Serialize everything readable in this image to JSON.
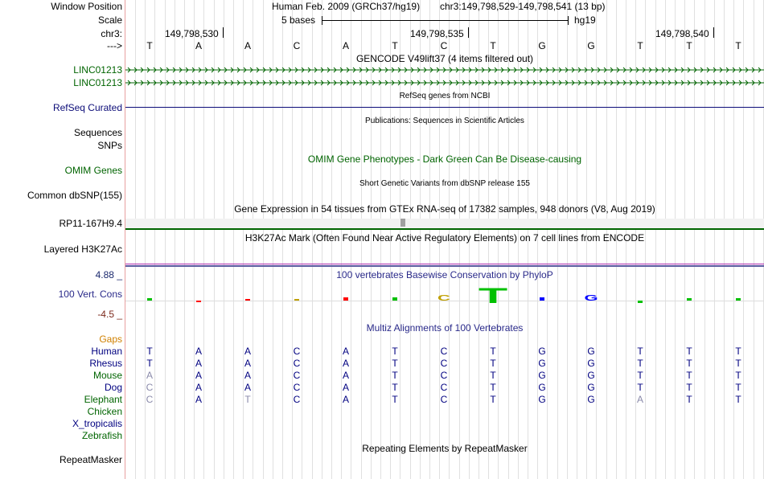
{
  "side_labels": {
    "window_position": "Window Position",
    "scale": "Scale",
    "chr": "chr3:",
    "arrow": "--->",
    "linc1": "LINC01213",
    "linc2": "LINC01213",
    "refseq": "RefSeq Curated",
    "sequences": "Sequences",
    "snps": "SNPs",
    "omim": "OMIM Genes",
    "dbsnp": "Common dbSNP(155)",
    "rp11": "RP11-167H9.4",
    "h3k27ac": "Layered H3K27Ac",
    "cons_max": "4.88 _",
    "vert_cons": "100 Vert. Cons",
    "cons_min": "-4.5 _",
    "gaps": "Gaps",
    "repeatmasker": "RepeatMasker"
  },
  "header": {
    "assembly": "Human Feb. 2009 (GRCh37/hg19)",
    "position": "chr3:149,798,529-149,798,541 (13 bp)",
    "scale_label": "5 bases",
    "db": "hg19",
    "tick1": "149,798,530",
    "tick2": "149,798,535",
    "tick3": "149,798,540"
  },
  "tracks": {
    "gencode": "GENCODE V49lift37 (4 items filtered out)",
    "refseq_title": "RefSeq genes from NCBI",
    "publications": "Publications: Sequences in Scientific Articles",
    "omim_title": "OMIM Gene Phenotypes - Dark Green Can Be Disease-causing",
    "dbsnp_title": "Short Genetic Variants from dbSNP release 155",
    "gtex": "Gene Expression in 54 tissues from GTEx RNA-seq of 17382 samples, 948 donors (V8, Aug 2019)",
    "h3k27ac_title": "H3K27Ac Mark (Often Found Near Active Regulatory Elements) on 7 cell lines from ENCODE",
    "phylop": "100 vertebrates Basewise Conservation by PhyloP",
    "multiz": "Multiz Alignments of 100 Vertebrates",
    "repeat_title": "Repeating Elements by RepeatMasker"
  },
  "bases": [
    "T",
    "A",
    "A",
    "C",
    "A",
    "T",
    "C",
    "T",
    "G",
    "G",
    "T",
    "T",
    "T"
  ],
  "conservation": [
    {
      "base": "T",
      "score": 0.5,
      "color": "#00c000"
    },
    {
      "base": "A",
      "score": -0.1,
      "color": "#ff0000"
    },
    {
      "base": "A",
      "score": 0.0,
      "color": "#ff0000"
    },
    {
      "base": "C",
      "score": 0.3,
      "color": "#c0a000"
    },
    {
      "base": "A",
      "score": 0.7,
      "color": "#ff0000"
    },
    {
      "base": "T",
      "score": 0.7,
      "color": "#00c000"
    },
    {
      "base": "C",
      "score": 1.0,
      "color": "#c0a000"
    },
    {
      "base": "T",
      "score": 2.8,
      "color": "#00c000"
    },
    {
      "base": "G",
      "score": 0.6,
      "color": "#0000ff"
    },
    {
      "base": "G",
      "score": 1.0,
      "color": "#0000ff"
    },
    {
      "base": "T",
      "score": -0.5,
      "color": "#00c000"
    },
    {
      "base": "T",
      "score": 0.5,
      "color": "#00c000"
    },
    {
      "base": "T",
      "score": 0.5,
      "color": "#00c000"
    }
  ],
  "species": [
    {
      "name": "Human",
      "color": "#000080",
      "bases": [
        "T",
        "A",
        "A",
        "C",
        "A",
        "T",
        "C",
        "T",
        "G",
        "G",
        "T",
        "T",
        "T"
      ],
      "faded": []
    },
    {
      "name": "Rhesus",
      "color": "#000080",
      "bases": [
        "T",
        "A",
        "A",
        "C",
        "A",
        "T",
        "C",
        "T",
        "G",
        "G",
        "T",
        "T",
        "T"
      ],
      "faded": []
    },
    {
      "name": "Mouse",
      "color": "#006400",
      "bases": [
        "A",
        "A",
        "A",
        "C",
        "A",
        "T",
        "C",
        "T",
        "G",
        "G",
        "T",
        "T",
        "T"
      ],
      "faded": [
        0
      ]
    },
    {
      "name": "Dog",
      "color": "#000080",
      "bases": [
        "C",
        "A",
        "A",
        "C",
        "A",
        "T",
        "C",
        "T",
        "G",
        "G",
        "T",
        "T",
        "T"
      ],
      "faded": [
        0
      ]
    },
    {
      "name": "Elephant",
      "color": "#006400",
      "bases": [
        "C",
        "A",
        "T",
        "C",
        "A",
        "T",
        "C",
        "T",
        "G",
        "G",
        "A",
        "T",
        "T"
      ],
      "faded": [
        0,
        2,
        10
      ]
    },
    {
      "name": "Chicken",
      "color": "#006400",
      "bases": [],
      "faded": []
    },
    {
      "name": "X_tropicalis",
      "color": "#000080",
      "bases": [],
      "faded": []
    },
    {
      "name": "Zebrafish",
      "color": "#006400",
      "bases": [],
      "faded": []
    }
  ],
  "colors": {
    "gencode": "#006400",
    "refseq": "#0c0c78",
    "omim": "#006400",
    "phylop": "#2a2a8a",
    "cons_max": "#1c2a6e",
    "cons_min": "#7c2a1c",
    "gaps": "#d08000",
    "h3k27ac_bar": "#b02fb0",
    "gtex_bar": "#006400"
  }
}
